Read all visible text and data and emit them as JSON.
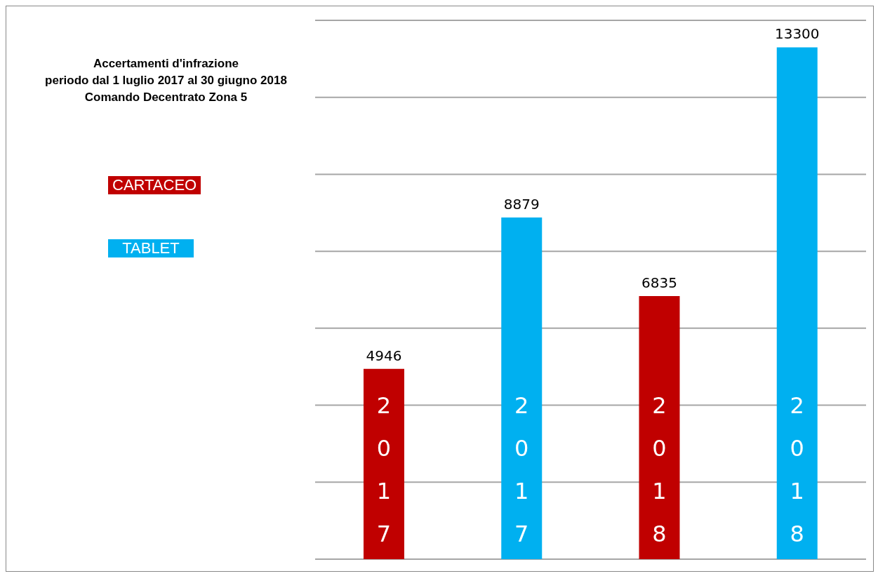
{
  "chart_data": {
    "type": "bar",
    "title": "Accertamenti d'infrazione\nperiodo dal 1 luglio 2017 al 30 giugno 2018\nComando Decentrato Zona 5",
    "categories": [
      "2017",
      "2017",
      "2018",
      "2018"
    ],
    "series": [
      {
        "name": "CARTACEO",
        "color": "#c00000",
        "values": [
          4946,
          null,
          6835,
          null
        ]
      },
      {
        "name": "TABLET",
        "color": "#00b0f0",
        "values": [
          null,
          8879,
          null,
          13300
        ]
      }
    ],
    "data_labels": true,
    "ylim": [
      0,
      14000
    ],
    "yticks": [
      {
        "value": 0,
        "label": null
      },
      {
        "value": 2000,
        "label": null
      },
      {
        "value": 4000,
        "label": null
      },
      {
        "value": 6000,
        "label": null
      },
      {
        "value": 8000,
        "label": null
      },
      {
        "value": 10000,
        "label": null
      },
      {
        "value": 12000,
        "label": null
      },
      {
        "value": 14000,
        "label": null
      }
    ],
    "grid": "y",
    "legend": "left",
    "tick_labels": "x"
  }
}
